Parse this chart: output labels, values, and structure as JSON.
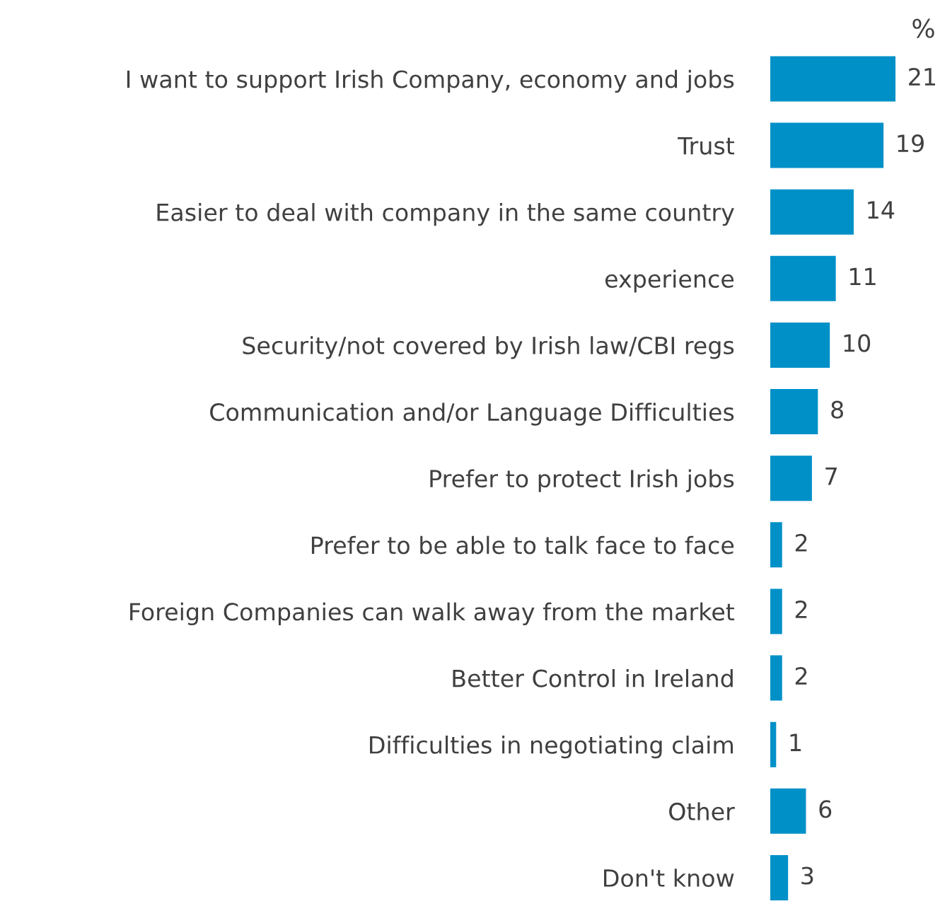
{
  "chart_data": {
    "type": "bar",
    "orientation": "horizontal",
    "title": "%",
    "categories": [
      "I want to support Irish Company, economy and jobs",
      "Trust",
      "Easier to deal with company in the same country",
      "experience",
      "Security/not covered by Irish law/CBI regs",
      "Communication and/or Language Difficulties",
      "Prefer to protect Irish jobs",
      "Prefer to be able to talk face to face",
      "Foreign Companies can walk away from the market",
      "Better Control in Ireland",
      "Difficulties in negotiating claim",
      "Other",
      "Don't know"
    ],
    "values": [
      21,
      19,
      14,
      11,
      10,
      8,
      7,
      2,
      2,
      2,
      1,
      6,
      3
    ],
    "color": "#0090c8",
    "data_labels": true,
    "tick_labels": "y",
    "grid": false,
    "legend": false
  }
}
